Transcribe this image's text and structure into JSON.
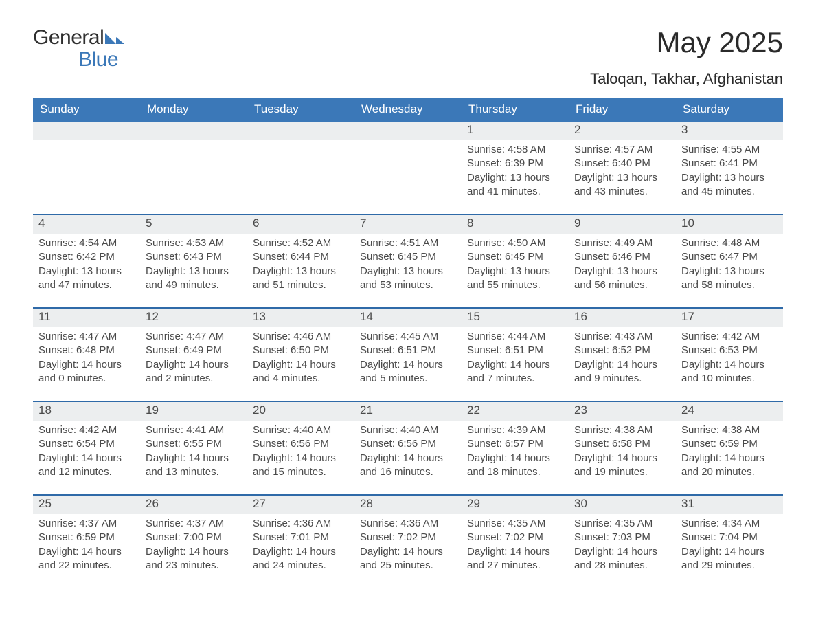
{
  "logo": {
    "word1": "General",
    "word2": "Blue",
    "flag_color": "#3b78b8",
    "text_color_dark": "#2e2e2e"
  },
  "header": {
    "title": "May 2025",
    "location": "Taloqan, Takhar, Afghanistan"
  },
  "theme": {
    "header_bg": "#3b78b8",
    "header_text": "#ffffff",
    "week_divider": "#2f6aa8",
    "daynum_bg": "#eceeef",
    "body_text": "#4a4a4a",
    "page_bg": "#ffffff"
  },
  "days_of_week": [
    "Sunday",
    "Monday",
    "Tuesday",
    "Wednesday",
    "Thursday",
    "Friday",
    "Saturday"
  ],
  "weeks": [
    [
      {
        "num": "",
        "lines": []
      },
      {
        "num": "",
        "lines": []
      },
      {
        "num": "",
        "lines": []
      },
      {
        "num": "",
        "lines": []
      },
      {
        "num": "1",
        "lines": [
          "Sunrise: 4:58 AM",
          "Sunset: 6:39 PM",
          "Daylight: 13 hours",
          "and 41 minutes."
        ]
      },
      {
        "num": "2",
        "lines": [
          "Sunrise: 4:57 AM",
          "Sunset: 6:40 PM",
          "Daylight: 13 hours",
          "and 43 minutes."
        ]
      },
      {
        "num": "3",
        "lines": [
          "Sunrise: 4:55 AM",
          "Sunset: 6:41 PM",
          "Daylight: 13 hours",
          "and 45 minutes."
        ]
      }
    ],
    [
      {
        "num": "4",
        "lines": [
          "Sunrise: 4:54 AM",
          "Sunset: 6:42 PM",
          "Daylight: 13 hours",
          "and 47 minutes."
        ]
      },
      {
        "num": "5",
        "lines": [
          "Sunrise: 4:53 AM",
          "Sunset: 6:43 PM",
          "Daylight: 13 hours",
          "and 49 minutes."
        ]
      },
      {
        "num": "6",
        "lines": [
          "Sunrise: 4:52 AM",
          "Sunset: 6:44 PM",
          "Daylight: 13 hours",
          "and 51 minutes."
        ]
      },
      {
        "num": "7",
        "lines": [
          "Sunrise: 4:51 AM",
          "Sunset: 6:45 PM",
          "Daylight: 13 hours",
          "and 53 minutes."
        ]
      },
      {
        "num": "8",
        "lines": [
          "Sunrise: 4:50 AM",
          "Sunset: 6:45 PM",
          "Daylight: 13 hours",
          "and 55 minutes."
        ]
      },
      {
        "num": "9",
        "lines": [
          "Sunrise: 4:49 AM",
          "Sunset: 6:46 PM",
          "Daylight: 13 hours",
          "and 56 minutes."
        ]
      },
      {
        "num": "10",
        "lines": [
          "Sunrise: 4:48 AM",
          "Sunset: 6:47 PM",
          "Daylight: 13 hours",
          "and 58 minutes."
        ]
      }
    ],
    [
      {
        "num": "11",
        "lines": [
          "Sunrise: 4:47 AM",
          "Sunset: 6:48 PM",
          "Daylight: 14 hours",
          "and 0 minutes."
        ]
      },
      {
        "num": "12",
        "lines": [
          "Sunrise: 4:47 AM",
          "Sunset: 6:49 PM",
          "Daylight: 14 hours",
          "and 2 minutes."
        ]
      },
      {
        "num": "13",
        "lines": [
          "Sunrise: 4:46 AM",
          "Sunset: 6:50 PM",
          "Daylight: 14 hours",
          "and 4 minutes."
        ]
      },
      {
        "num": "14",
        "lines": [
          "Sunrise: 4:45 AM",
          "Sunset: 6:51 PM",
          "Daylight: 14 hours",
          "and 5 minutes."
        ]
      },
      {
        "num": "15",
        "lines": [
          "Sunrise: 4:44 AM",
          "Sunset: 6:51 PM",
          "Daylight: 14 hours",
          "and 7 minutes."
        ]
      },
      {
        "num": "16",
        "lines": [
          "Sunrise: 4:43 AM",
          "Sunset: 6:52 PM",
          "Daylight: 14 hours",
          "and 9 minutes."
        ]
      },
      {
        "num": "17",
        "lines": [
          "Sunrise: 4:42 AM",
          "Sunset: 6:53 PM",
          "Daylight: 14 hours",
          "and 10 minutes."
        ]
      }
    ],
    [
      {
        "num": "18",
        "lines": [
          "Sunrise: 4:42 AM",
          "Sunset: 6:54 PM",
          "Daylight: 14 hours",
          "and 12 minutes."
        ]
      },
      {
        "num": "19",
        "lines": [
          "Sunrise: 4:41 AM",
          "Sunset: 6:55 PM",
          "Daylight: 14 hours",
          "and 13 minutes."
        ]
      },
      {
        "num": "20",
        "lines": [
          "Sunrise: 4:40 AM",
          "Sunset: 6:56 PM",
          "Daylight: 14 hours",
          "and 15 minutes."
        ]
      },
      {
        "num": "21",
        "lines": [
          "Sunrise: 4:40 AM",
          "Sunset: 6:56 PM",
          "Daylight: 14 hours",
          "and 16 minutes."
        ]
      },
      {
        "num": "22",
        "lines": [
          "Sunrise: 4:39 AM",
          "Sunset: 6:57 PM",
          "Daylight: 14 hours",
          "and 18 minutes."
        ]
      },
      {
        "num": "23",
        "lines": [
          "Sunrise: 4:38 AM",
          "Sunset: 6:58 PM",
          "Daylight: 14 hours",
          "and 19 minutes."
        ]
      },
      {
        "num": "24",
        "lines": [
          "Sunrise: 4:38 AM",
          "Sunset: 6:59 PM",
          "Daylight: 14 hours",
          "and 20 minutes."
        ]
      }
    ],
    [
      {
        "num": "25",
        "lines": [
          "Sunrise: 4:37 AM",
          "Sunset: 6:59 PM",
          "Daylight: 14 hours",
          "and 22 minutes."
        ]
      },
      {
        "num": "26",
        "lines": [
          "Sunrise: 4:37 AM",
          "Sunset: 7:00 PM",
          "Daylight: 14 hours",
          "and 23 minutes."
        ]
      },
      {
        "num": "27",
        "lines": [
          "Sunrise: 4:36 AM",
          "Sunset: 7:01 PM",
          "Daylight: 14 hours",
          "and 24 minutes."
        ]
      },
      {
        "num": "28",
        "lines": [
          "Sunrise: 4:36 AM",
          "Sunset: 7:02 PM",
          "Daylight: 14 hours",
          "and 25 minutes."
        ]
      },
      {
        "num": "29",
        "lines": [
          "Sunrise: 4:35 AM",
          "Sunset: 7:02 PM",
          "Daylight: 14 hours",
          "and 27 minutes."
        ]
      },
      {
        "num": "30",
        "lines": [
          "Sunrise: 4:35 AM",
          "Sunset: 7:03 PM",
          "Daylight: 14 hours",
          "and 28 minutes."
        ]
      },
      {
        "num": "31",
        "lines": [
          "Sunrise: 4:34 AM",
          "Sunset: 7:04 PM",
          "Daylight: 14 hours",
          "and 29 minutes."
        ]
      }
    ]
  ]
}
